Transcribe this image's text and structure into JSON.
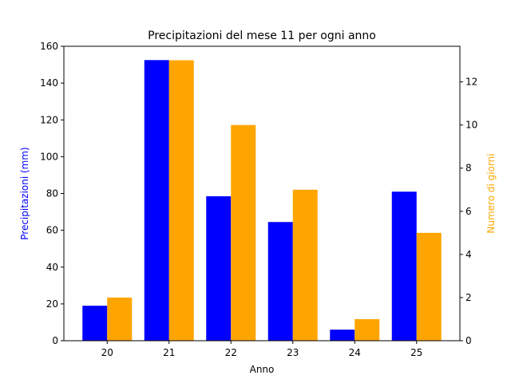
{
  "chart_data": {
    "type": "bar",
    "title": "Precipitazioni del mese 11 per ogni anno",
    "xlabel": "Anno",
    "ylabel": "Precipitazioni (mm)",
    "y2label": "Numero di giorni",
    "categories": [
      "20",
      "21",
      "22",
      "23",
      "24",
      "25"
    ],
    "series": [
      {
        "axis": "left",
        "color": "#0000ff",
        "values": [
          19,
          152.5,
          78.5,
          64.5,
          6,
          81
        ]
      },
      {
        "axis": "right",
        "color": "#ffa500",
        "values": [
          2,
          13,
          10,
          7,
          1,
          5
        ]
      }
    ],
    "ylim": [
      0,
      160
    ],
    "y2lim": [
      0,
      13.65
    ],
    "yticks": [
      0,
      20,
      40,
      60,
      80,
      100,
      120,
      140,
      160
    ],
    "y2ticks": [
      0,
      2,
      4,
      6,
      8,
      10,
      12
    ],
    "grid": false,
    "colors": {
      "left_axis_label": "#0000ff",
      "right_axis_label": "#ffa500"
    }
  }
}
